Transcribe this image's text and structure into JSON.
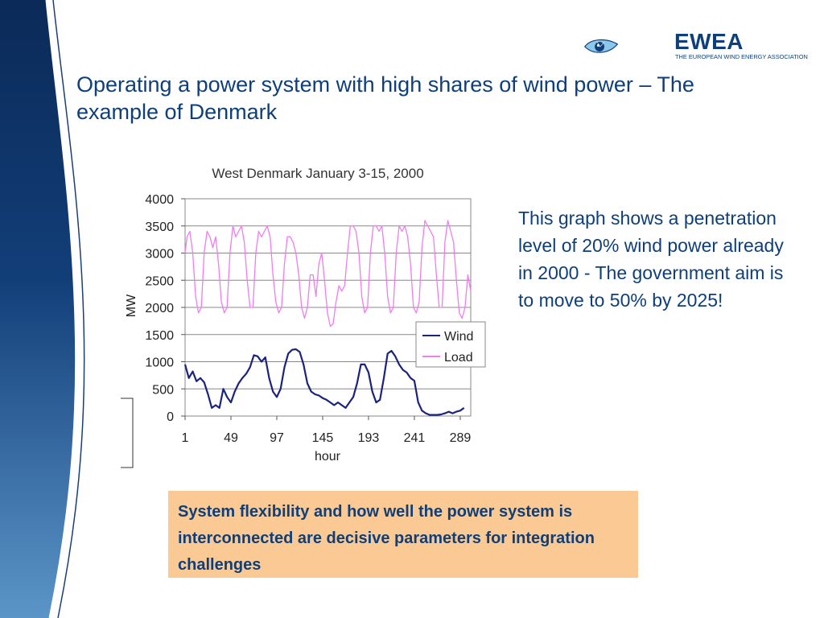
{
  "slide": {
    "title": "Operating a power system with high shares of wind power – The example of Denmark",
    "description": "This graph shows a penetration level of 20% wind power already in 2000  - The government aim is to move to 50% by 2025!",
    "callout": "System flexibility and how well the power system is interconnected are decisive parameters for integration challenges"
  },
  "logo": {
    "name": "EWEA",
    "subtitle": "THE EUROPEAN WIND ENERGY ASSOCIATION"
  },
  "colors": {
    "title": "#0e3f7a",
    "callout_bg": "#fbca94",
    "wind": "#1a237e",
    "load": "#f07cf0"
  },
  "chart_data": {
    "type": "line",
    "title": "West Denmark January 3-15, 2000",
    "xlabel": "hour",
    "ylabel": "MW",
    "xlim": [
      1,
      300
    ],
    "ylim": [
      0,
      4000
    ],
    "xticks": [
      1,
      49,
      97,
      145,
      193,
      241,
      289
    ],
    "yticks": [
      0,
      500,
      1000,
      1500,
      2000,
      2500,
      3000,
      3500,
      4000
    ],
    "grid": "horizontal",
    "legend": "right",
    "series": [
      {
        "name": "Wind",
        "color": "#1a237e",
        "points": [
          [
            1,
            950
          ],
          [
            5,
            700
          ],
          [
            9,
            820
          ],
          [
            13,
            640
          ],
          [
            17,
            700
          ],
          [
            21,
            620
          ],
          [
            25,
            400
          ],
          [
            29,
            150
          ],
          [
            33,
            200
          ],
          [
            37,
            150
          ],
          [
            41,
            500
          ],
          [
            45,
            350
          ],
          [
            49,
            250
          ],
          [
            53,
            450
          ],
          [
            57,
            600
          ],
          [
            61,
            700
          ],
          [
            65,
            780
          ],
          [
            69,
            900
          ],
          [
            73,
            1120
          ],
          [
            77,
            1100
          ],
          [
            81,
            1000
          ],
          [
            85,
            1080
          ],
          [
            89,
            700
          ],
          [
            93,
            450
          ],
          [
            97,
            350
          ],
          [
            101,
            500
          ],
          [
            105,
            900
          ],
          [
            109,
            1150
          ],
          [
            113,
            1220
          ],
          [
            117,
            1230
          ],
          [
            121,
            1180
          ],
          [
            125,
            950
          ],
          [
            129,
            600
          ],
          [
            133,
            450
          ],
          [
            137,
            400
          ],
          [
            141,
            380
          ],
          [
            145,
            330
          ],
          [
            149,
            300
          ],
          [
            153,
            250
          ],
          [
            157,
            200
          ],
          [
            161,
            250
          ],
          [
            165,
            200
          ],
          [
            169,
            150
          ],
          [
            173,
            250
          ],
          [
            177,
            350
          ],
          [
            181,
            600
          ],
          [
            185,
            950
          ],
          [
            189,
            950
          ],
          [
            193,
            800
          ],
          [
            197,
            450
          ],
          [
            201,
            250
          ],
          [
            205,
            300
          ],
          [
            209,
            700
          ],
          [
            213,
            1150
          ],
          [
            217,
            1200
          ],
          [
            221,
            1100
          ],
          [
            225,
            950
          ],
          [
            229,
            850
          ],
          [
            233,
            800
          ],
          [
            237,
            700
          ],
          [
            241,
            650
          ],
          [
            245,
            250
          ],
          [
            249,
            100
          ],
          [
            253,
            50
          ],
          [
            257,
            20
          ],
          [
            261,
            20
          ],
          [
            265,
            20
          ],
          [
            269,
            30
          ],
          [
            273,
            50
          ],
          [
            277,
            80
          ],
          [
            281,
            50
          ],
          [
            285,
            80
          ],
          [
            289,
            100
          ],
          [
            293,
            150
          ]
        ]
      },
      {
        "name": "Load",
        "color": "#f07cf0",
        "points": [
          [
            1,
            3000
          ],
          [
            3,
            3300
          ],
          [
            6,
            3400
          ],
          [
            9,
            3000
          ],
          [
            12,
            2200
          ],
          [
            15,
            1900
          ],
          [
            18,
            2000
          ],
          [
            21,
            3000
          ],
          [
            24,
            3400
          ],
          [
            27,
            3300
          ],
          [
            30,
            3100
          ],
          [
            33,
            3300
          ],
          [
            36,
            2800
          ],
          [
            39,
            2100
          ],
          [
            42,
            1900
          ],
          [
            45,
            2000
          ],
          [
            48,
            3000
          ],
          [
            51,
            3500
          ],
          [
            54,
            3300
          ],
          [
            57,
            3400
          ],
          [
            60,
            3500
          ],
          [
            63,
            3200
          ],
          [
            66,
            2500
          ],
          [
            69,
            2000
          ],
          [
            72,
            2000
          ],
          [
            75,
            3000
          ],
          [
            78,
            3400
          ],
          [
            81,
            3300
          ],
          [
            84,
            3400
          ],
          [
            87,
            3500
          ],
          [
            90,
            3300
          ],
          [
            93,
            2600
          ],
          [
            96,
            2100
          ],
          [
            99,
            1900
          ],
          [
            102,
            2000
          ],
          [
            105,
            2800
          ],
          [
            108,
            3300
          ],
          [
            111,
            3300
          ],
          [
            114,
            3200
          ],
          [
            117,
            3000
          ],
          [
            120,
            2600
          ],
          [
            123,
            2000
          ],
          [
            126,
            1800
          ],
          [
            129,
            2000
          ],
          [
            132,
            2600
          ],
          [
            135,
            2600
          ],
          [
            138,
            2200
          ],
          [
            141,
            2800
          ],
          [
            144,
            3000
          ],
          [
            147,
            2500
          ],
          [
            150,
            1900
          ],
          [
            153,
            1650
          ],
          [
            156,
            1700
          ],
          [
            159,
            2100
          ],
          [
            162,
            2400
          ],
          [
            165,
            2300
          ],
          [
            168,
            2400
          ],
          [
            171,
            3000
          ],
          [
            174,
            3500
          ],
          [
            177,
            3500
          ],
          [
            180,
            3400
          ],
          [
            183,
            3000
          ],
          [
            186,
            2200
          ],
          [
            189,
            1900
          ],
          [
            192,
            2000
          ],
          [
            195,
            3000
          ],
          [
            198,
            3500
          ],
          [
            201,
            3500
          ],
          [
            204,
            3400
          ],
          [
            207,
            3500
          ],
          [
            210,
            3000
          ],
          [
            213,
            2200
          ],
          [
            216,
            1900
          ],
          [
            219,
            2000
          ],
          [
            222,
            3000
          ],
          [
            225,
            3500
          ],
          [
            228,
            3400
          ],
          [
            231,
            3500
          ],
          [
            234,
            3300
          ],
          [
            237,
            2800
          ],
          [
            240,
            2000
          ],
          [
            243,
            1900
          ],
          [
            246,
            2100
          ],
          [
            249,
            3100
          ],
          [
            252,
            3600
          ],
          [
            255,
            3500
          ],
          [
            258,
            3400
          ],
          [
            261,
            3300
          ],
          [
            264,
            2600
          ],
          [
            267,
            2000
          ],
          [
            270,
            2000
          ],
          [
            273,
            3200
          ],
          [
            276,
            3600
          ],
          [
            279,
            3400
          ],
          [
            282,
            3200
          ],
          [
            285,
            2500
          ],
          [
            288,
            1900
          ],
          [
            291,
            1800
          ],
          [
            294,
            2000
          ],
          [
            297,
            2600
          ],
          [
            300,
            2300
          ]
        ]
      }
    ]
  }
}
